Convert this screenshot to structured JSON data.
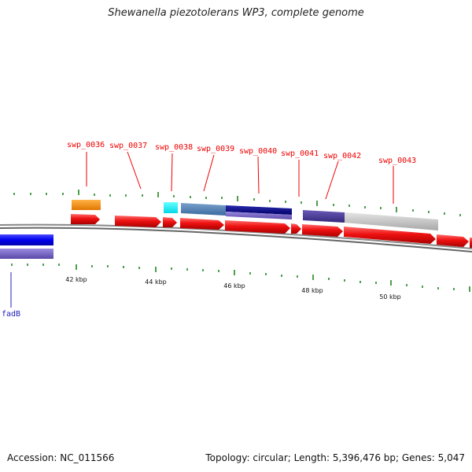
{
  "title": "Shewanella piezotolerans WP3, complete genome",
  "footer": {
    "accession": "Accession: NC_011566",
    "summary": "Topology: circular; Length: 5,396,476 bp; Genes: 5,047"
  },
  "gene_labels": [
    "swp_0036",
    "swp_0037",
    "swp_0038",
    "swp_0039",
    "swp_0040",
    "swp_0041",
    "swp_0042",
    "swp_0043"
  ],
  "kbp_labels": [
    "42 kbp",
    "44 kbp",
    "46 kbp",
    "48 kbp",
    "50 kbp"
  ],
  "other_label": "fadB",
  "colors": {
    "gene_arrow": "#ee1111",
    "backbone": "#777777",
    "tick": "#228822",
    "label": "#ee0000",
    "fadB_label": "#2222bb"
  }
}
